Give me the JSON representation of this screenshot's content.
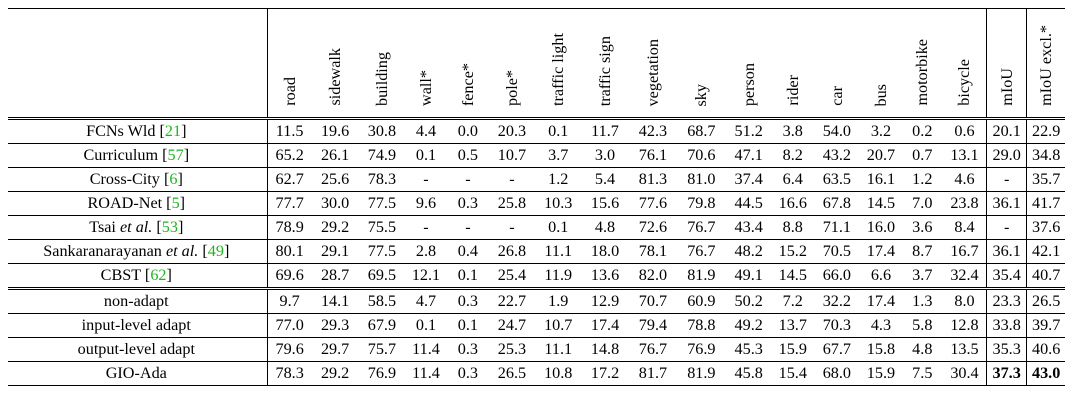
{
  "columns": [
    "road",
    "sidewalk",
    "building",
    "wall*",
    "fence*",
    "pole*",
    "traffic light",
    "traffic sign",
    "vegetation",
    "sky",
    "person",
    "rider",
    "car",
    "bus",
    "motorbike",
    "bicycle",
    "mIoU",
    "mIoU excl.*"
  ],
  "rows": [
    {
      "pre": "FCNs Wld [",
      "ref": "21",
      "post": "]",
      "values": [
        "11.5",
        "19.6",
        "30.8",
        "4.4",
        "0.0",
        "20.3",
        "0.1",
        "11.7",
        "42.3",
        "68.7",
        "51.2",
        "3.8",
        "54.0",
        "3.2",
        "0.2",
        "0.6",
        "20.1",
        "22.9"
      ]
    },
    {
      "pre": "Curriculum [",
      "ref": "57",
      "post": "]",
      "values": [
        "65.2",
        "26.1",
        "74.9",
        "0.1",
        "0.5",
        "10.7",
        "3.7",
        "3.0",
        "76.1",
        "70.6",
        "47.1",
        "8.2",
        "43.2",
        "20.7",
        "0.7",
        "13.1",
        "29.0",
        "34.8"
      ]
    },
    {
      "pre": "Cross-City [",
      "ref": "6",
      "post": "]",
      "values": [
        "62.7",
        "25.6",
        "78.3",
        "-",
        "-",
        "-",
        "1.2",
        "5.4",
        "81.3",
        "81.0",
        "37.4",
        "6.4",
        "63.5",
        "16.1",
        "1.2",
        "4.6",
        "-",
        "35.7"
      ]
    },
    {
      "pre": "ROAD-Net [",
      "ref": "5",
      "post": "]",
      "values": [
        "77.7",
        "30.0",
        "77.5",
        "9.6",
        "0.3",
        "25.8",
        "10.3",
        "15.6",
        "77.6",
        "79.8",
        "44.5",
        "16.6",
        "67.8",
        "14.5",
        "7.0",
        "23.8",
        "36.1",
        "41.7"
      ]
    },
    {
      "pre": "Tsai ",
      "em": "et al.",
      "pre2": " [",
      "ref": "53",
      "post": "]",
      "values": [
        "78.9",
        "29.2",
        "75.5",
        "-",
        "-",
        "-",
        "0.1",
        "4.8",
        "72.6",
        "76.7",
        "43.4",
        "8.8",
        "71.1",
        "16.0",
        "3.6",
        "8.4",
        "-",
        "37.6"
      ]
    },
    {
      "pre": "Sankaranarayanan ",
      "em": "et al.",
      "pre2": " [",
      "ref": "49",
      "post": "]",
      "values": [
        "80.1",
        "29.1",
        "77.5",
        "2.8",
        "0.4",
        "26.8",
        "11.1",
        "18.0",
        "78.1",
        "76.7",
        "48.2",
        "15.2",
        "70.5",
        "17.4",
        "8.7",
        "16.7",
        "36.1",
        "42.1"
      ]
    },
    {
      "pre": "CBST [",
      "ref": "62",
      "post": "]",
      "values": [
        "69.6",
        "28.7",
        "69.5",
        "12.1",
        "0.1",
        "25.4",
        "11.9",
        "13.6",
        "82.0",
        "81.9",
        "49.1",
        "14.5",
        "66.0",
        "6.6",
        "3.7",
        "32.4",
        "35.4",
        "40.7"
      ]
    },
    {
      "pre": "non-adapt",
      "values": [
        "9.7",
        "14.1",
        "58.5",
        "4.7",
        "0.3",
        "22.7",
        "1.9",
        "12.9",
        "70.7",
        "60.9",
        "50.2",
        "7.2",
        "32.2",
        "17.4",
        "1.3",
        "8.0",
        "23.3",
        "26.5"
      ]
    },
    {
      "pre": "input-level adapt",
      "values": [
        "77.0",
        "29.3",
        "67.9",
        "0.1",
        "0.1",
        "24.7",
        "10.7",
        "17.4",
        "79.4",
        "78.8",
        "49.2",
        "13.7",
        "70.3",
        "4.3",
        "5.8",
        "12.8",
        "33.8",
        "39.7"
      ]
    },
    {
      "pre": "output-level adapt",
      "values": [
        "79.6",
        "29.7",
        "75.7",
        "11.4",
        "0.3",
        "25.3",
        "11.1",
        "14.8",
        "76.7",
        "76.9",
        "45.3",
        "15.9",
        "67.7",
        "15.8",
        "4.8",
        "13.5",
        "35.3",
        "40.6"
      ]
    },
    {
      "pre": "GIO-Ada",
      "values": [
        "78.3",
        "29.2",
        "76.9",
        "11.4",
        "0.3",
        "26.5",
        "10.8",
        "17.2",
        "81.7",
        "81.9",
        "45.8",
        "15.4",
        "68.0",
        "15.9",
        "7.5",
        "30.4",
        "37.3",
        "43.0"
      ]
    }
  ],
  "bold_cells": [
    [
      10,
      16
    ],
    [
      10,
      17
    ]
  ]
}
